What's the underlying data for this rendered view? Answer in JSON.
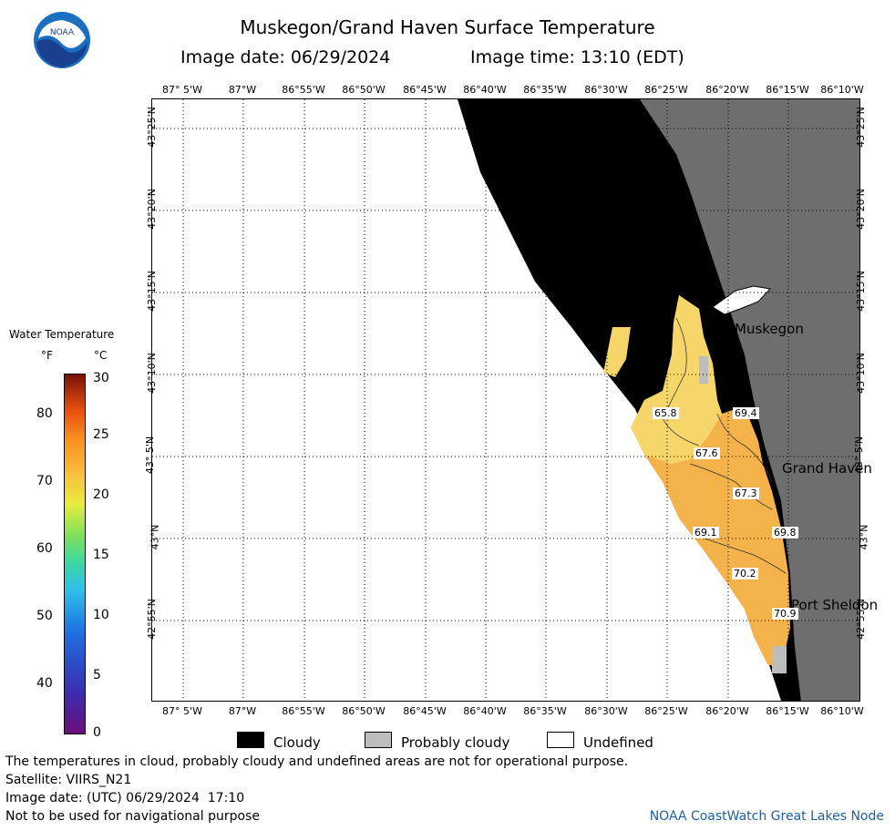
{
  "logo": {
    "text": "NOAA",
    "colors": {
      "outer": "#1a6fc0",
      "inner": "#ffffff",
      "bird": "#1a3f8f"
    }
  },
  "header": {
    "title": "Muskegon/Grand Haven Surface Temperature",
    "image_date_label": "Image date: 06/29/2024",
    "image_time_label": "Image time: 13:10 (EDT)"
  },
  "axes": {
    "longitude_ticks": [
      "87° 5'W",
      "87°W",
      "86°55'W",
      "86°50'W",
      "86°45'W",
      "86°40'W",
      "86°35'W",
      "86°30'W",
      "86°25'W",
      "86°20'W",
      "86°15'W",
      "86°10'W"
    ],
    "latitude_ticks": [
      "43°25'N",
      "43°20'N",
      "43°15'N",
      "43°10'N",
      "43° 5'N",
      "43°N",
      "42°55'N"
    ]
  },
  "legend": {
    "title": "Water Temperature",
    "unit_f": "°F",
    "unit_c": "°C",
    "fahrenheit_ticks": [
      "80",
      "70",
      "60",
      "50",
      "40"
    ],
    "celsius_ticks": [
      "30",
      "25",
      "20",
      "15",
      "10",
      "5",
      "0"
    ],
    "colors": [
      "#6a0f7a",
      "#3a2fb0",
      "#1e6fe0",
      "#2fc0e8",
      "#40d8a0",
      "#7ee05a",
      "#e8ec40",
      "#f8c040",
      "#f89020",
      "#e85010",
      "#b02008",
      "#7a1008"
    ]
  },
  "map": {
    "places": [
      "Muskegon",
      "Grand Haven",
      "Port Sheldon"
    ],
    "temperature_labels": [
      "65.8",
      "69.4",
      "67.6",
      "67.3",
      "69.1",
      "69.8",
      "70.2",
      "70.9"
    ],
    "colors": {
      "cloudy": "#000000",
      "probably_cloudy": "#bdbdbd",
      "undefined": "#ffffff",
      "land": "#6e6e6e",
      "water_warm": "#f4b24a",
      "water_cool": "#f6d66a"
    }
  },
  "key": {
    "cloudy": "Cloudy",
    "probably_cloudy": "Probably cloudy",
    "undefined": "Undefined"
  },
  "notes": {
    "disclaimer": "The temperatures in cloud, probably cloudy and undefined areas are not for operational purpose.",
    "satellite": "Satellite: VIIRS_N21",
    "utc_date": "Image date: (UTC) 06/29/2024  17:10",
    "navigation": "Not to be used for navigational purpose",
    "credit": "NOAA CoastWatch Great Lakes Node"
  }
}
